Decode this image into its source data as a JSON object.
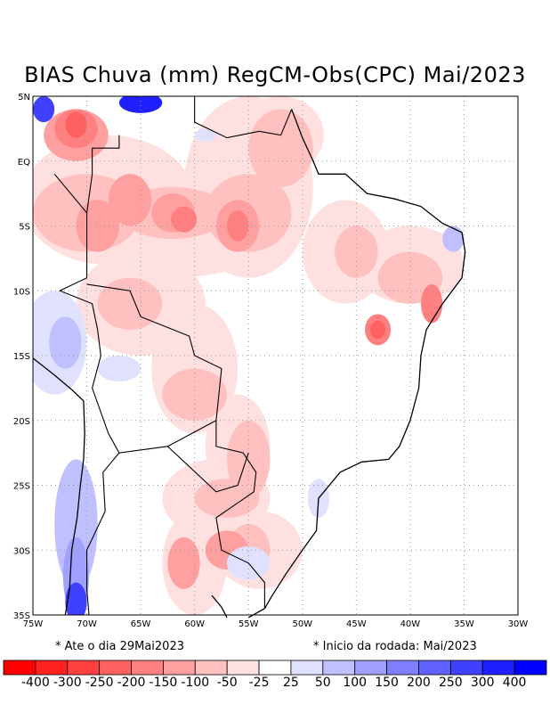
{
  "title": "BIAS Chuva (mm) RegCM-Obs(CPC) Mai/2023",
  "map": {
    "lon_labels": [
      "75W",
      "70W",
      "65W",
      "60W",
      "55W",
      "50W",
      "45W",
      "40W",
      "35W",
      "30W"
    ],
    "lat_labels": [
      "5N",
      "EQ",
      "5S",
      "10S",
      "15S",
      "20S",
      "25S",
      "30S",
      "35S"
    ],
    "lon_range": [
      -75,
      -30
    ],
    "lat_range": [
      -35,
      5
    ]
  },
  "footer": {
    "left": "* Ate o dia 29Mai2023",
    "right": "* Inicio da rodada: Mai/2023"
  },
  "colorbar": {
    "colors": [
      "#ff0000",
      "#ff2020",
      "#ff4040",
      "#ff6060",
      "#ff8080",
      "#ffa0a0",
      "#ffc0c0",
      "#ffe0e0",
      "#ffffff",
      "#e0e0ff",
      "#c0c0ff",
      "#a0a0ff",
      "#8080ff",
      "#6060ff",
      "#4040ff",
      "#2020ff",
      "#0000ff"
    ],
    "labels": [
      "-400",
      "-300",
      "-250",
      "-200",
      "-150",
      "-100",
      "-50",
      "-25",
      "25",
      "50",
      "100",
      "150",
      "200",
      "250",
      "300",
      "400"
    ]
  }
}
